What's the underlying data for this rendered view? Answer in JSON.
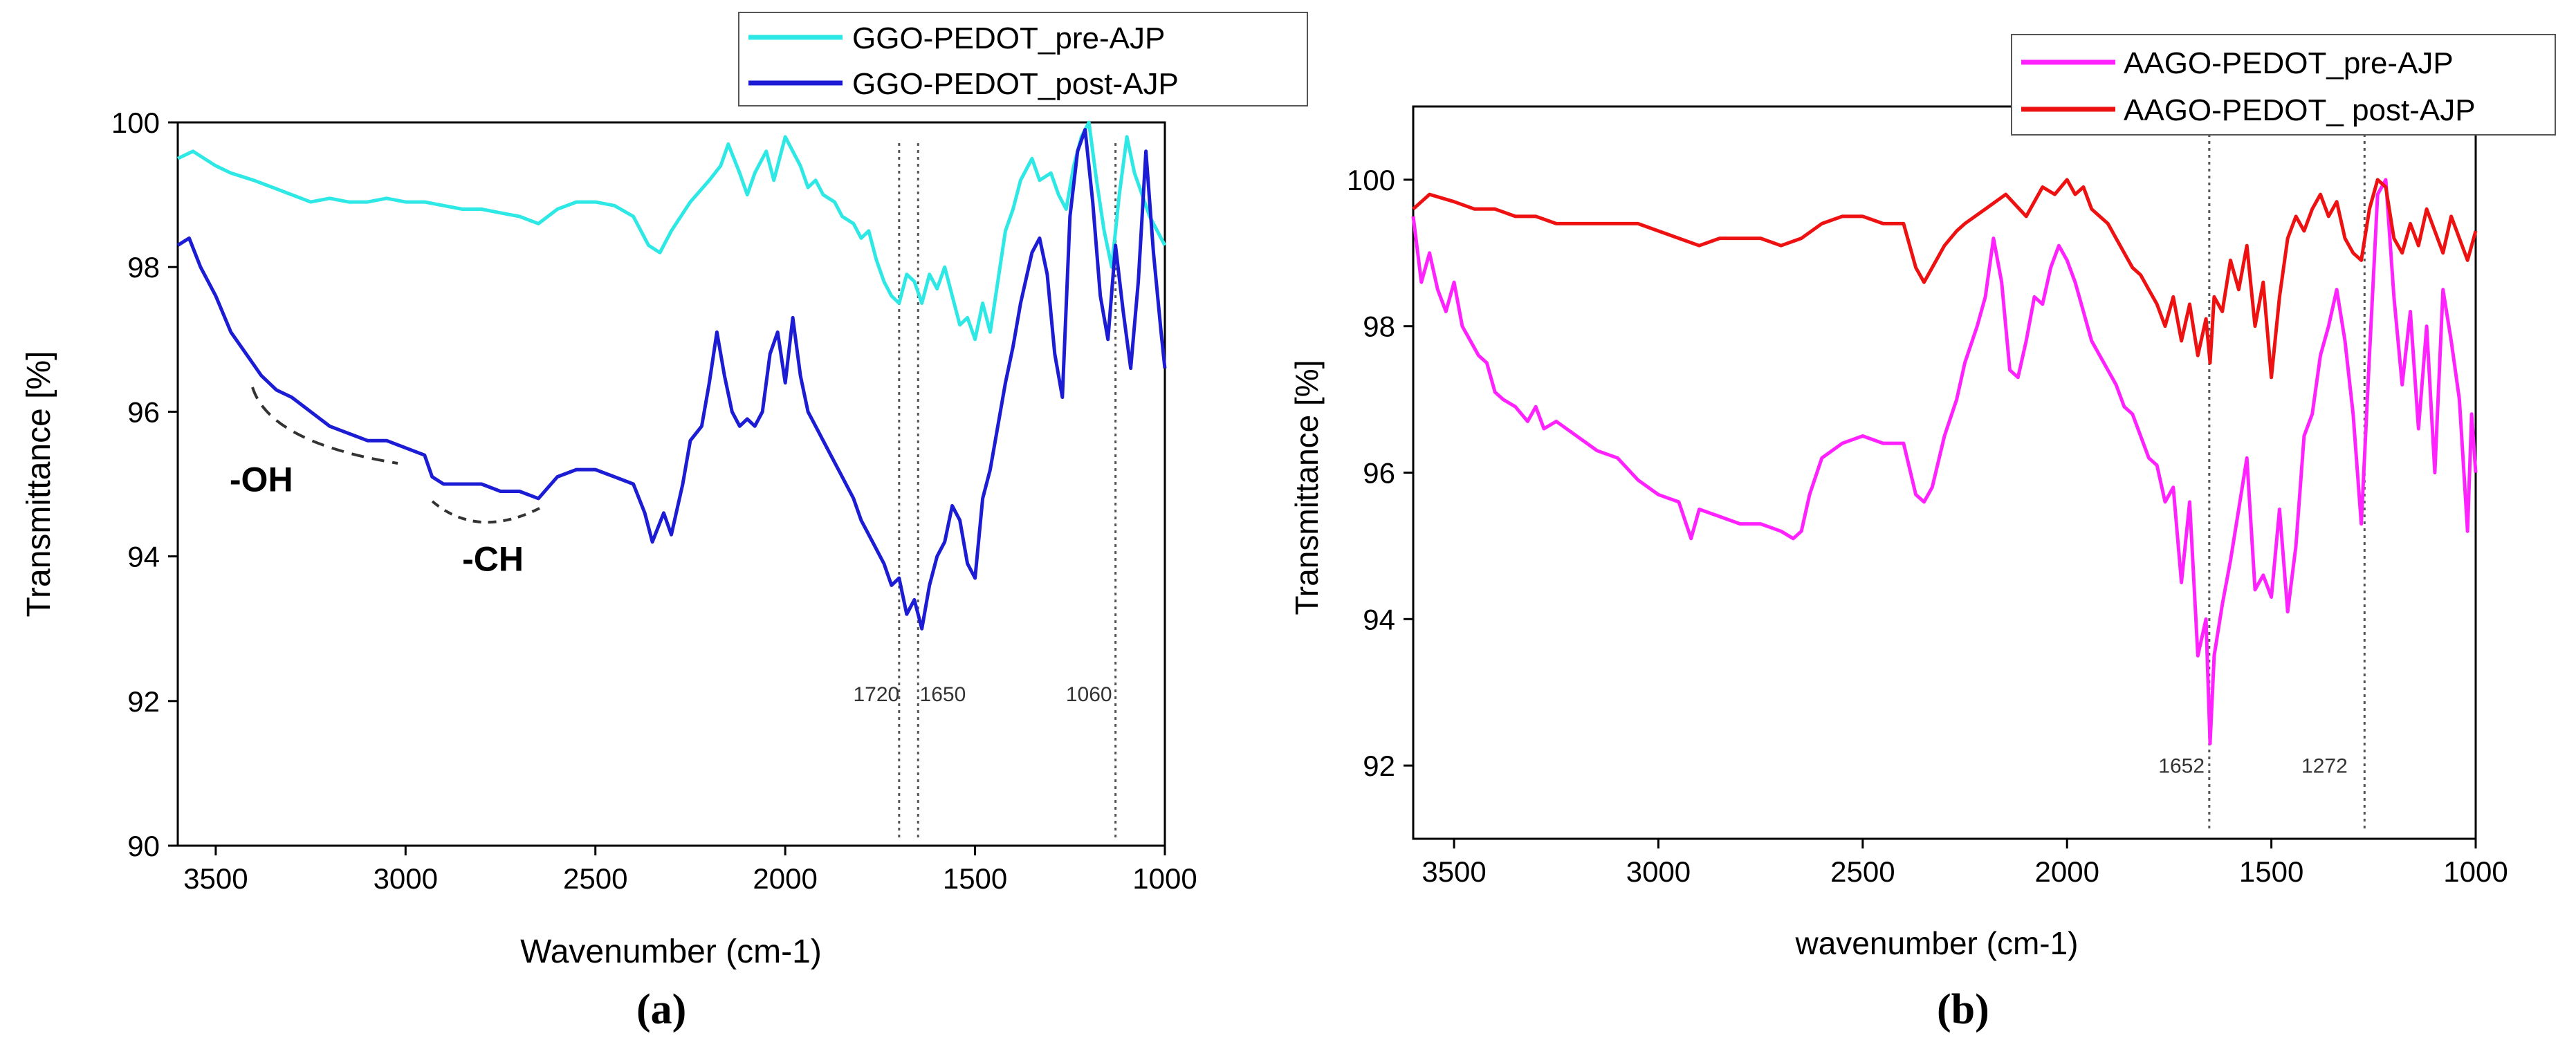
{
  "chart_data": [
    {
      "type": "line",
      "panel_label": "(a)",
      "xlabel": "Wavenumber (cm-1)",
      "ylabel": "Transmittance [%]",
      "xlim": [
        3600,
        1000
      ],
      "ylim": [
        90,
        100
      ],
      "x_ticks": [
        3500,
        3000,
        2500,
        2000,
        1500,
        1000
      ],
      "y_ticks": [
        90,
        92,
        94,
        96,
        98,
        100
      ],
      "legend_position": "top-right",
      "series": [
        {
          "name": "GGO-PEDOT_pre-AJP",
          "color": "#2ee8e6",
          "x": [
            3600,
            3560,
            3500,
            3460,
            3400,
            3350,
            3300,
            3250,
            3200,
            3150,
            3100,
            3050,
            3000,
            2950,
            2900,
            2850,
            2800,
            2750,
            2700,
            2650,
            2600,
            2550,
            2500,
            2450,
            2400,
            2360,
            2330,
            2300,
            2250,
            2200,
            2170,
            2150,
            2120,
            2100,
            2080,
            2050,
            2030,
            2000,
            1980,
            1960,
            1940,
            1920,
            1900,
            1870,
            1850,
            1820,
            1800,
            1780,
            1760,
            1740,
            1720,
            1700,
            1680,
            1660,
            1640,
            1620,
            1600,
            1580,
            1560,
            1540,
            1520,
            1500,
            1480,
            1460,
            1440,
            1420,
            1400,
            1380,
            1350,
            1330,
            1300,
            1280,
            1260,
            1240,
            1220,
            1200,
            1180,
            1160,
            1140,
            1120,
            1100,
            1080,
            1060,
            1040,
            1020,
            1000
          ],
          "y": [
            99.5,
            99.6,
            99.4,
            99.3,
            99.2,
            99.1,
            99.0,
            98.9,
            98.95,
            98.9,
            98.9,
            98.95,
            98.9,
            98.9,
            98.85,
            98.8,
            98.8,
            98.75,
            98.7,
            98.6,
            98.8,
            98.9,
            98.9,
            98.85,
            98.7,
            98.3,
            98.2,
            98.5,
            98.9,
            99.2,
            99.4,
            99.7,
            99.3,
            99.0,
            99.3,
            99.6,
            99.2,
            99.8,
            99.6,
            99.4,
            99.1,
            99.2,
            99.0,
            98.9,
            98.7,
            98.6,
            98.4,
            98.5,
            98.1,
            97.8,
            97.6,
            97.5,
            97.9,
            97.8,
            97.5,
            97.9,
            97.7,
            98.0,
            97.6,
            97.2,
            97.3,
            97.0,
            97.5,
            97.1,
            97.8,
            98.5,
            98.8,
            99.2,
            99.5,
            99.2,
            99.3,
            99.0,
            98.8,
            99.4,
            99.8,
            100.0,
            99.2,
            98.5,
            98.0,
            99.0,
            99.8,
            99.3,
            99.0,
            98.7,
            98.5,
            98.3
          ]
        },
        {
          "name": "GGO-PEDOT_post-AJP",
          "color": "#1c1cd4",
          "x": [
            3600,
            3570,
            3540,
            3500,
            3460,
            3420,
            3380,
            3340,
            3300,
            3250,
            3200,
            3150,
            3100,
            3050,
            3000,
            2950,
            2930,
            2900,
            2850,
            2800,
            2750,
            2700,
            2650,
            2600,
            2550,
            2500,
            2450,
            2400,
            2370,
            2350,
            2320,
            2300,
            2270,
            2250,
            2220,
            2200,
            2180,
            2160,
            2140,
            2120,
            2100,
            2080,
            2060,
            2040,
            2020,
            2000,
            1980,
            1960,
            1940,
            1920,
            1900,
            1880,
            1850,
            1820,
            1800,
            1780,
            1760,
            1740,
            1720,
            1700,
            1680,
            1660,
            1640,
            1620,
            1600,
            1580,
            1560,
            1540,
            1520,
            1500,
            1480,
            1460,
            1440,
            1420,
            1400,
            1380,
            1350,
            1330,
            1310,
            1290,
            1270,
            1250,
            1230,
            1210,
            1190,
            1170,
            1150,
            1130,
            1110,
            1090,
            1070,
            1050,
            1030,
            1010,
            1000
          ],
          "y": [
            98.3,
            98.4,
            98.0,
            97.6,
            97.1,
            96.8,
            96.5,
            96.3,
            96.2,
            96.0,
            95.8,
            95.7,
            95.6,
            95.6,
            95.5,
            95.4,
            95.1,
            95.0,
            95.0,
            95.0,
            94.9,
            94.9,
            94.8,
            95.1,
            95.2,
            95.2,
            95.1,
            95.0,
            94.6,
            94.2,
            94.6,
            94.3,
            95.0,
            95.6,
            95.8,
            96.4,
            97.1,
            96.5,
            96.0,
            95.8,
            95.9,
            95.8,
            96.0,
            96.8,
            97.1,
            96.4,
            97.3,
            96.5,
            96.0,
            95.8,
            95.6,
            95.4,
            95.1,
            94.8,
            94.5,
            94.3,
            94.1,
            93.9,
            93.6,
            93.7,
            93.2,
            93.4,
            93.0,
            93.6,
            94.0,
            94.2,
            94.7,
            94.5,
            93.9,
            93.7,
            94.8,
            95.2,
            95.8,
            96.4,
            96.9,
            97.5,
            98.2,
            98.4,
            97.9,
            96.8,
            96.2,
            98.7,
            99.6,
            99.9,
            98.9,
            97.6,
            97.0,
            98.3,
            97.4,
            96.6,
            97.8,
            99.6,
            98.2,
            97.1,
            96.6
          ]
        }
      ],
      "annotations": [
        {
          "text": "-OH",
          "x": 3380,
          "y": 94.9
        },
        {
          "text": "-CH",
          "x": 2770,
          "y": 93.8
        },
        {
          "text": "1720",
          "x": 1760,
          "y": 92.0
        },
        {
          "text": "1650",
          "x": 1585,
          "y": 92.0
        },
        {
          "text": "1060",
          "x": 1200,
          "y": 92.0
        }
      ],
      "reference_lines": [
        1700,
        1650,
        1130
      ]
    },
    {
      "type": "line",
      "panel_label": "(b)",
      "xlabel": "wavenumber (cm-1)",
      "ylabel": "Transmittance [%]",
      "xlim": [
        3600,
        1000
      ],
      "ylim": [
        91,
        101
      ],
      "x_ticks": [
        3500,
        3000,
        2500,
        2000,
        1500,
        1000
      ],
      "y_ticks": [
        92,
        94,
        96,
        98,
        100
      ],
      "legend_position": "top-right",
      "series": [
        {
          "name": "AAGO-PEDOT_pre-AJP",
          "color": "#ff22ff",
          "x": [
            3600,
            3580,
            3560,
            3540,
            3520,
            3500,
            3480,
            3460,
            3440,
            3420,
            3400,
            3380,
            3350,
            3320,
            3300,
            3280,
            3250,
            3200,
            3150,
            3100,
            3050,
            3000,
            2950,
            2920,
            2900,
            2850,
            2800,
            2750,
            2700,
            2670,
            2650,
            2630,
            2600,
            2550,
            2500,
            2450,
            2400,
            2370,
            2350,
            2330,
            2300,
            2270,
            2250,
            2220,
            2200,
            2180,
            2160,
            2140,
            2120,
            2100,
            2080,
            2060,
            2040,
            2020,
            2000,
            1980,
            1960,
            1940,
            1920,
            1900,
            1880,
            1860,
            1840,
            1820,
            1800,
            1780,
            1760,
            1740,
            1720,
            1700,
            1680,
            1660,
            1650,
            1640,
            1620,
            1600,
            1580,
            1560,
            1540,
            1520,
            1500,
            1480,
            1460,
            1440,
            1420,
            1400,
            1380,
            1360,
            1340,
            1320,
            1300,
            1280,
            1260,
            1240,
            1220,
            1200,
            1180,
            1160,
            1140,
            1120,
            1100,
            1080,
            1060,
            1040,
            1020,
            1010,
            1000
          ],
          "y": [
            99.5,
            98.6,
            99.0,
            98.5,
            98.2,
            98.6,
            98.0,
            97.8,
            97.6,
            97.5,
            97.1,
            97.0,
            96.9,
            96.7,
            96.9,
            96.6,
            96.7,
            96.5,
            96.3,
            96.2,
            95.9,
            95.7,
            95.6,
            95.1,
            95.5,
            95.4,
            95.3,
            95.3,
            95.2,
            95.1,
            95.2,
            95.7,
            96.2,
            96.4,
            96.5,
            96.4,
            96.4,
            95.7,
            95.6,
            95.8,
            96.5,
            97.0,
            97.5,
            98.0,
            98.4,
            99.2,
            98.6,
            97.4,
            97.3,
            97.8,
            98.4,
            98.3,
            98.8,
            99.1,
            98.9,
            98.6,
            98.2,
            97.8,
            97.6,
            97.4,
            97.2,
            96.9,
            96.8,
            96.5,
            96.2,
            96.1,
            95.6,
            95.8,
            94.5,
            95.6,
            93.5,
            94.0,
            92.3,
            93.5,
            94.2,
            94.8,
            95.5,
            96.2,
            94.4,
            94.6,
            94.3,
            95.5,
            94.1,
            95.0,
            96.5,
            96.8,
            97.6,
            98.0,
            98.5,
            97.8,
            96.8,
            95.3,
            97.6,
            99.8,
            100.0,
            98.4,
            97.2,
            98.2,
            96.6,
            98.0,
            96.0,
            98.5,
            97.8,
            97.0,
            95.2,
            96.8,
            96.0
          ]
        },
        {
          "name": "AAGO-PEDOT_ post-AJP",
          "color": "#ee1111",
          "x": [
            3600,
            3560,
            3500,
            3450,
            3400,
            3350,
            3300,
            3250,
            3200,
            3150,
            3100,
            3050,
            3000,
            2950,
            2900,
            2850,
            2800,
            2750,
            2700,
            2650,
            2600,
            2550,
            2500,
            2450,
            2400,
            2370,
            2350,
            2330,
            2300,
            2270,
            2250,
            2200,
            2150,
            2100,
            2060,
            2030,
            2000,
            1980,
            1960,
            1940,
            1920,
            1900,
            1880,
            1860,
            1840,
            1820,
            1800,
            1780,
            1760,
            1740,
            1720,
            1700,
            1680,
            1660,
            1650,
            1640,
            1620,
            1600,
            1580,
            1560,
            1540,
            1520,
            1500,
            1480,
            1460,
            1440,
            1420,
            1400,
            1380,
            1360,
            1340,
            1320,
            1300,
            1280,
            1260,
            1240,
            1220,
            1200,
            1180,
            1160,
            1140,
            1120,
            1100,
            1080,
            1060,
            1040,
            1020,
            1000
          ],
          "y": [
            99.6,
            99.8,
            99.7,
            99.6,
            99.6,
            99.5,
            99.5,
            99.4,
            99.4,
            99.4,
            99.4,
            99.4,
            99.3,
            99.2,
            99.1,
            99.2,
            99.2,
            99.2,
            99.1,
            99.2,
            99.4,
            99.5,
            99.5,
            99.4,
            99.4,
            98.8,
            98.6,
            98.8,
            99.1,
            99.3,
            99.4,
            99.6,
            99.8,
            99.5,
            99.9,
            99.8,
            100.0,
            99.8,
            99.9,
            99.6,
            99.5,
            99.4,
            99.2,
            99.0,
            98.8,
            98.7,
            98.5,
            98.3,
            98.0,
            98.4,
            97.8,
            98.3,
            97.6,
            98.1,
            97.5,
            98.4,
            98.2,
            98.9,
            98.5,
            99.1,
            98.0,
            98.6,
            97.3,
            98.4,
            99.2,
            99.5,
            99.3,
            99.6,
            99.8,
            99.5,
            99.7,
            99.2,
            99.0,
            98.9,
            99.6,
            100.0,
            99.9,
            99.2,
            99.0,
            99.4,
            99.1,
            99.6,
            99.3,
            99.0,
            99.5,
            99.2,
            98.9,
            99.3
          ]
        }
      ],
      "annotations": [
        {
          "text": "1652",
          "x": 1720,
          "y": 91.9
        },
        {
          "text": "1272",
          "x": 1370,
          "y": 91.9
        }
      ],
      "reference_lines": [
        1652,
        1272
      ]
    }
  ]
}
